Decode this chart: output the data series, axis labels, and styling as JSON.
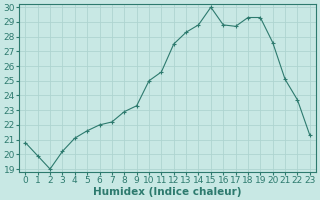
{
  "x": [
    0,
    1,
    2,
    3,
    4,
    5,
    6,
    7,
    8,
    9,
    10,
    11,
    12,
    13,
    14,
    15,
    16,
    17,
    18,
    19,
    20,
    21,
    22,
    23
  ],
  "y": [
    20.8,
    19.9,
    19.0,
    20.2,
    21.1,
    21.6,
    22.0,
    22.2,
    22.9,
    23.3,
    25.0,
    25.6,
    27.5,
    28.3,
    28.8,
    30.0,
    28.8,
    28.7,
    29.3,
    29.3,
    27.6,
    25.1,
    23.7,
    21.3
  ],
  "line_color": "#2d7a6e",
  "marker": "+",
  "marker_size": 3,
  "marker_lw": 0.8,
  "bg_color": "#c8e8e4",
  "grid_color": "#aed4d0",
  "xlabel": "Humidex (Indice chaleur)",
  "xlabel_fontsize": 7.5,
  "tick_fontsize": 6.5,
  "ylim": [
    19,
    30
  ],
  "yticks": [
    19,
    20,
    21,
    22,
    23,
    24,
    25,
    26,
    27,
    28,
    29,
    30
  ],
  "xticks": [
    0,
    1,
    2,
    3,
    4,
    5,
    6,
    7,
    8,
    9,
    10,
    11,
    12,
    13,
    14,
    15,
    16,
    17,
    18,
    19,
    20,
    21,
    22,
    23
  ],
  "xlim": [
    -0.5,
    23.5
  ]
}
